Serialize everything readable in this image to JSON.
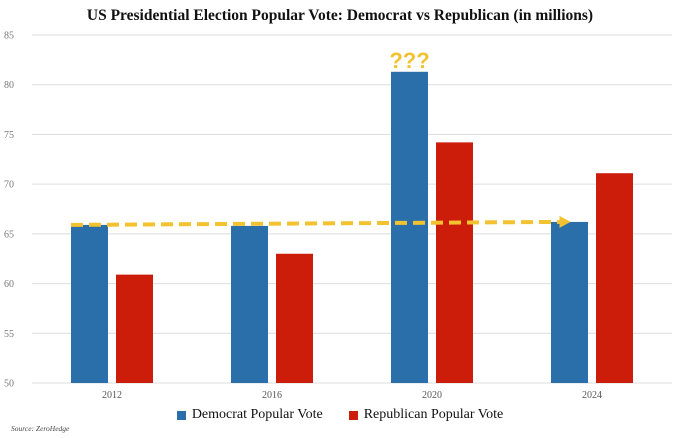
{
  "colors": {
    "democrat": "#2b6faa",
    "republican": "#cc1c0a",
    "annotation": "#f2c230",
    "grid": "#dddddd"
  },
  "source": "Source: ZeroHedge",
  "chart_data": {
    "type": "bar",
    "title": "US Presidential Election Popular Vote: Democrat vs Republican (in millions)",
    "categories": [
      "2012",
      "2016",
      "2020",
      "2024"
    ],
    "series": [
      {
        "name": "Democrat Popular Vote",
        "values": [
          65.9,
          65.8,
          81.3,
          66.2
        ],
        "color": "#2b6faa"
      },
      {
        "name": "Republican Popular Vote",
        "values": [
          60.9,
          63.0,
          74.2,
          71.1
        ],
        "color": "#cc1c0a"
      }
    ],
    "ylim": [
      50,
      85
    ],
    "yticks": [
      "50",
      "55",
      "60",
      "65",
      "70",
      "75",
      "80",
      "85"
    ],
    "grid": true,
    "legend": "bottom",
    "annotations": [
      {
        "text": "???",
        "category": "2020",
        "series": "Democrat Popular Vote"
      },
      {
        "type": "dashed-arrow",
        "from": {
          "category": "2012",
          "value": 65.9
        },
        "to": {
          "category": "2024",
          "value": 66.2
        }
      }
    ]
  }
}
